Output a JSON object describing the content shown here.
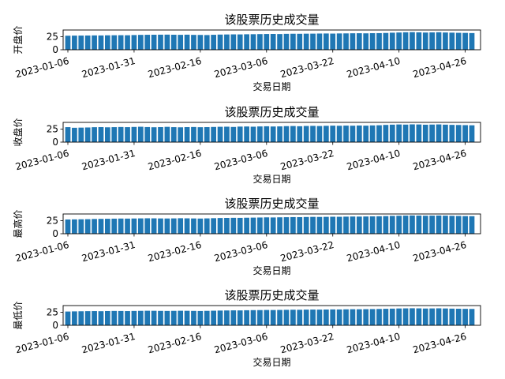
{
  "chart_data": [
    {
      "type": "bar",
      "title": "该股票历史成交量",
      "xlabel": "交易日期",
      "ylabel": "开盘价",
      "ylim": [
        0,
        38
      ],
      "yticks": [
        0,
        25
      ],
      "xtick_labels": [
        "2023-01-06",
        "2023-01-31",
        "2023-02-16",
        "2023-03-06",
        "2023-03-22",
        "2023-04-10",
        "2023-04-26"
      ],
      "xtick_index": [
        0,
        10,
        20,
        30,
        40,
        50,
        60
      ],
      "values": [
        27.0,
        27.2,
        27.3,
        27.4,
        27.6,
        27.5,
        27.8,
        27.9,
        28.0,
        27.9,
        28.3,
        28.6,
        28.8,
        28.9,
        29.0,
        29.1,
        28.9,
        28.7,
        29.0,
        28.6,
        28.5,
        28.3,
        28.8,
        29.2,
        29.4,
        29.6,
        29.5,
        29.8,
        29.9,
        30.1,
        30.3,
        30.4,
        30.2,
        30.6,
        30.8,
        30.7,
        30.9,
        31.0,
        31.2,
        31.3,
        31.1,
        31.4,
        31.5,
        31.7,
        31.8,
        31.6,
        31.9,
        32.0,
        32.3,
        32.8,
        33.2,
        33.6,
        33.9,
        33.5,
        33.1,
        33.4,
        33.7,
        33.2,
        32.9,
        32.6,
        32.4,
        32.1
      ]
    },
    {
      "type": "bar",
      "title": "该股票历史成交量",
      "xlabel": "交易日期",
      "ylabel": "收盘价",
      "ylim": [
        0,
        38
      ],
      "yticks": [
        0,
        25
      ],
      "xtick_labels": [
        "2023-01-06",
        "2023-01-31",
        "2023-02-16",
        "2023-03-06",
        "2023-03-22",
        "2023-04-10",
        "2023-04-26"
      ],
      "xtick_index": [
        0,
        10,
        20,
        30,
        40,
        50,
        60
      ],
      "values": [
        28.8,
        27.6,
        27.9,
        28.2,
        28.7,
        28.9,
        28.5,
        28.8,
        29.1,
        28.8,
        29.2,
        29.6,
        29.0,
        28.6,
        28.9,
        29.4,
        28.8,
        28.5,
        28.9,
        29.1,
        28.7,
        28.9,
        29.2,
        29.5,
        29.7,
        29.2,
        29.9,
        30.1,
        29.7,
        30.2,
        30.5,
        30.1,
        30.3,
        30.8,
        31.0,
        30.6,
        31.1,
        31.3,
        31.0,
        31.4,
        31.7,
        31.5,
        31.8,
        31.6,
        32.0,
        31.7,
        32.2,
        32.5,
        33.1,
        33.6,
        34.0,
        33.7,
        34.2,
        34.0,
        33.5,
        33.8,
        34.1,
        33.6,
        33.2,
        33.0,
        32.7,
        32.4
      ]
    },
    {
      "type": "bar",
      "title": "该股票历史成交量",
      "xlabel": "交易日期",
      "ylabel": "最高价",
      "ylim": [
        0,
        38
      ],
      "yticks": [
        0,
        25
      ],
      "xtick_labels": [
        "2023-01-06",
        "2023-01-31",
        "2023-02-16",
        "2023-03-06",
        "2023-03-22",
        "2023-04-10",
        "2023-04-26"
      ],
      "xtick_index": [
        0,
        10,
        20,
        30,
        40,
        50,
        60
      ],
      "values": [
        27.4,
        27.6,
        27.8,
        28.0,
        28.4,
        28.6,
        28.8,
        29.0,
        29.2,
        29.1,
        29.3,
        29.5,
        29.7,
        29.6,
        29.4,
        29.3,
        29.5,
        29.8,
        29.6,
        29.4,
        29.2,
        29.5,
        29.9,
        30.2,
        30.4,
        30.6,
        30.5,
        30.8,
        31.0,
        31.2,
        31.5,
        31.3,
        31.6,
        31.8,
        32.0,
        31.9,
        32.2,
        32.4,
        32.3,
        32.5,
        32.7,
        32.6,
        32.9,
        33.1,
        33.0,
        33.2,
        33.4,
        33.6,
        33.9,
        34.3,
        34.6,
        34.8,
        35.1,
        34.9,
        34.6,
        34.8,
        35.0,
        34.7,
        34.4,
        34.2,
        33.9,
        33.7
      ]
    },
    {
      "type": "bar",
      "title": "该股票历史成交量",
      "xlabel": "交易日期",
      "ylabel": "最低价",
      "ylim": [
        0,
        38
      ],
      "yticks": [
        0,
        25
      ],
      "xtick_labels": [
        "2023-01-06",
        "2023-01-31",
        "2023-02-16",
        "2023-03-06",
        "2023-03-22",
        "2023-04-10",
        "2023-04-26"
      ],
      "xtick_index": [
        0,
        10,
        20,
        30,
        40,
        50,
        60
      ],
      "values": [
        26.5,
        26.8,
        27.0,
        27.2,
        27.3,
        27.1,
        27.4,
        27.6,
        27.5,
        27.3,
        27.6,
        27.8,
        28.0,
        27.9,
        27.7,
        27.6,
        27.8,
        28.0,
        27.9,
        27.7,
        27.5,
        27.8,
        28.1,
        28.4,
        28.6,
        28.8,
        28.7,
        29.0,
        29.2,
        29.3,
        29.5,
        29.4,
        29.6,
        29.8,
        30.0,
        29.9,
        30.2,
        30.3,
        30.2,
        30.4,
        30.6,
        30.5,
        30.8,
        31.0,
        30.9,
        31.1,
        31.3,
        31.5,
        31.8,
        32.1,
        32.4,
        32.6,
        32.8,
        32.6,
        32.3,
        32.5,
        32.7,
        32.4,
        32.1,
        31.9,
        31.7,
        31.5
      ]
    }
  ],
  "colors": {
    "bar": "#1f77b4",
    "axis": "#000000",
    "background": "#ffffff"
  }
}
